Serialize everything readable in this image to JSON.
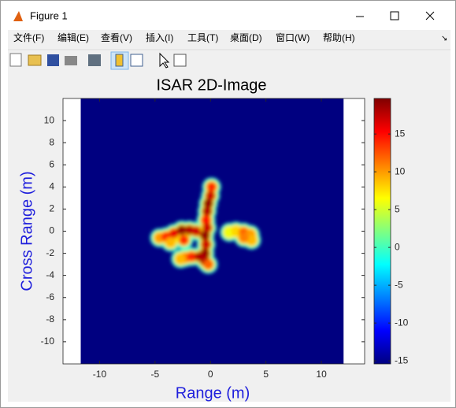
{
  "window": {
    "title": "Figure 1",
    "menu": [
      "文件(F)",
      "编辑(E)",
      "查看(V)",
      "插入(I)",
      "工具(T)",
      "桌面(D)",
      "窗口(W)",
      "帮助(H)"
    ]
  },
  "chart_data": {
    "type": "image",
    "title": "ISAR 2D-Image",
    "x_label": "Range (m)",
    "y_label": "Cross Range (m)",
    "xlim": [
      -13.3,
      13.9
    ],
    "ylim": [
      -12,
      12
    ],
    "xticks": [
      -10,
      -5,
      0,
      5,
      10
    ],
    "yticks": [
      -10,
      -8,
      -6,
      -4,
      -2,
      0,
      2,
      4,
      6,
      8,
      10
    ],
    "image_xlim": [
      -11.7,
      12
    ],
    "colormap": "jet",
    "label_color": "#1f1fdc",
    "x": [
      0.1,
      0,
      -0.2,
      -0.3,
      -0.4,
      -0.3,
      -0.5,
      -0.4,
      -0.5,
      -0.5,
      -0.2,
      -4.6,
      -4.0,
      -3.3,
      -2.6,
      -1.9,
      -1.3,
      -3.6,
      -2.4,
      -2.3,
      -1.7,
      -1.0,
      -2.7,
      1.7,
      2.3,
      3.0,
      3.6,
      3.7,
      3.0
    ],
    "y": [
      4.0,
      3.2,
      2.5,
      1.8,
      1.0,
      0.3,
      -0.4,
      -1.2,
      -2.0,
      -2.7,
      -3.0,
      -0.6,
      -0.5,
      -0.2,
      0.1,
      0.1,
      0.0,
      -1.0,
      -0.8,
      -2.4,
      -2.3,
      -2.3,
      -2.5,
      -0.1,
      0.0,
      -0.1,
      -0.3,
      -0.8,
      -0.6
    ],
    "values": [
      14,
      17,
      19,
      18,
      15,
      17,
      19,
      17,
      19,
      18,
      12,
      10,
      14,
      16,
      19,
      18,
      17,
      9,
      14,
      11,
      14,
      18,
      9,
      6,
      8,
      12,
      10,
      9,
      11
    ],
    "colorbar": {
      "clim": [
        -15.4,
        19.7
      ],
      "ticks": [
        -15,
        -10,
        -5,
        0,
        5,
        10,
        15
      ]
    }
  }
}
